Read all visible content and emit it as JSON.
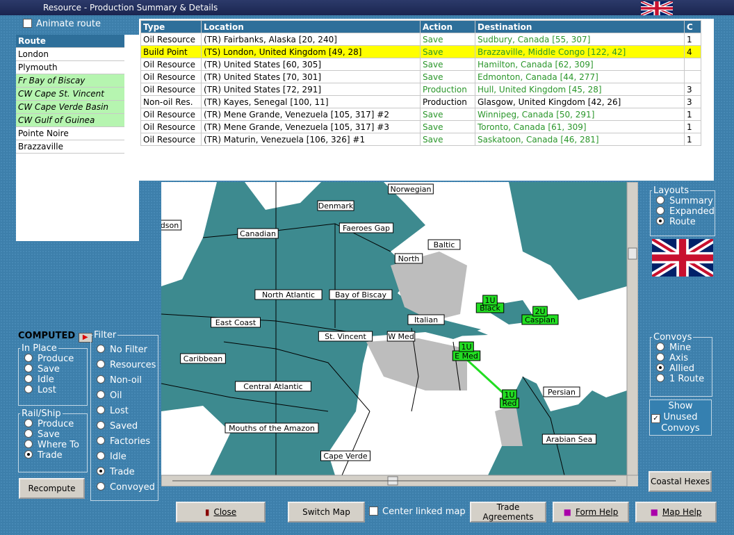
{
  "window": {
    "title": "Resource - Production Summary & Details"
  },
  "animate_route": "Animate route",
  "routes": {
    "header": "Route",
    "items": [
      "London",
      "Plymouth",
      "Fr Bay of Biscay",
      "CW Cape St. Vincent",
      "CW Cape Verde Basin",
      "CW Gulf of Guinea",
      "Pointe Noire",
      "Brazzaville"
    ]
  },
  "table": {
    "headers": [
      "Type",
      "Location",
      "Action",
      "Destination",
      "C"
    ],
    "rows": [
      [
        "Oil Resource",
        "(TR) Fairbanks, Alaska [20, 240]",
        "Save",
        "Sudbury, Canada [55, 307]",
        1
      ],
      [
        "Build Point",
        "(TS) London, United Kingdom [49, 28]",
        "Save",
        "Brazzaville, Middle Congo [122, 42]",
        4
      ],
      [
        "Oil Resource",
        "(TR) United States [60, 305]",
        "Save",
        "Hamilton, Canada [62, 309]",
        null
      ],
      [
        "Oil Resource",
        "(TR) United States [70, 301]",
        "Save",
        "Edmonton, Canada [44, 277]",
        null
      ],
      [
        "Oil Resource",
        "(TR) United States [72, 291]",
        "Production",
        "Hull, United Kingdom [45, 28]",
        3
      ],
      [
        "Non-oil Res.",
        "(TR) Kayes, Senegal [100, 11]",
        "Production",
        "Glasgow, United Kingdom [42, 26]",
        3
      ],
      [
        "Oil Resource",
        "(TR) Mene Grande, Venezuela [105, 317] #2",
        "Save",
        "Winnipeg, Canada [50, 291]",
        1
      ],
      [
        "Oil Resource",
        "(TR) Mene Grande, Venezuela [105, 317] #3",
        "Save",
        "Toronto, Canada [61, 309]",
        1
      ],
      [
        "Oil Resource",
        "(TR) Maturin, Venezuela [106, 326] #1",
        "Save",
        "Saskatoon, Canada [46, 281]",
        1
      ]
    ]
  },
  "map": {
    "labels": [
      "Norwegian",
      "Denmark",
      "Faeroes Gap",
      "Canadian",
      "dson",
      "Baltic",
      "North",
      "North Atlantic",
      "Bay of Biscay",
      "Italian",
      "East Coast",
      "St. Vincent",
      "W Med",
      "Caribbean",
      "Central Atlantic",
      "Persian",
      "Mouths of the Amazon",
      "Arabian Sea",
      "Cape Verde",
      "Black",
      "Caspian",
      "E Med",
      "Red"
    ],
    "units": [
      "1U",
      "2U",
      "1U",
      "1U"
    ]
  },
  "computed": "COMPUTED",
  "in_place": {
    "legend": "In Place",
    "options": [
      "Produce",
      "Save",
      "Idle",
      "Lost"
    ]
  },
  "rail_ship": {
    "legend": "Rail/Ship",
    "options": [
      "Produce",
      "Save",
      "Where To",
      "Trade"
    ],
    "selected": 3
  },
  "filter": {
    "legend": "Filter",
    "options": [
      "No Filter",
      "Resources",
      "Non-oil",
      "Oil",
      "Lost",
      "Saved",
      "Factories",
      "Idle",
      "Trade",
      "Convoyed"
    ],
    "selected": 8
  },
  "recompute": "Recompute",
  "layouts": {
    "legend": "Layouts",
    "options": [
      "Summary",
      "Expanded",
      "Route"
    ],
    "selected": 2
  },
  "convoys": {
    "legend": "Convoys",
    "options": [
      "Mine",
      "Axis",
      "Allied",
      "1 Route"
    ],
    "selected": 2
  },
  "show_unused": "Show Unused Convoys",
  "coastal_hexes": "Coastal Hexes",
  "buttons": {
    "close": "Close",
    "switch_map": "Switch Map",
    "center_linked": "Center linked map",
    "trade": "Trade Agreements",
    "form_help": "Form Help",
    "map_help": "Map Help"
  }
}
